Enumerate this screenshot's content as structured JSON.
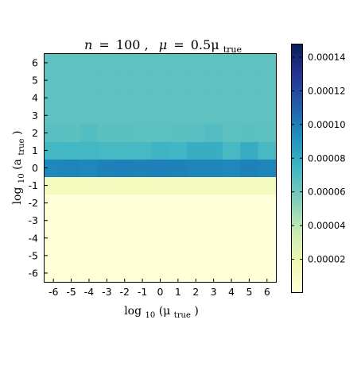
{
  "chart_data": {
    "type": "heatmap",
    "title": {
      "n_label": "n",
      "n_value": "100",
      "mu_label": "μ",
      "mu_expr": "0.5μ",
      "mu_sub": "true"
    },
    "xlabel": {
      "prefix": "log",
      "base": "10",
      "arg": "(μ",
      "sub": "true",
      "close": ")"
    },
    "ylabel": {
      "prefix": "log",
      "base": "10",
      "arg": "(a",
      "sub": "true",
      "close": ")"
    },
    "x_ticks": [
      "-6",
      "-5",
      "-4",
      "-3",
      "-2",
      "-1",
      "0",
      "1",
      "2",
      "3",
      "4",
      "5",
      "6"
    ],
    "y_ticks": [
      "-6",
      "-5",
      "-4",
      "-3",
      "-2",
      "-1",
      "0",
      "1",
      "2",
      "3",
      "4",
      "5",
      "6"
    ],
    "x_values": [
      -6,
      -5,
      -4,
      -3,
      -2,
      -1,
      0,
      1,
      2,
      3,
      4,
      5,
      6
    ],
    "y_values": [
      -6,
      -5,
      -4,
      -3,
      -2,
      -1,
      0,
      1,
      2,
      3,
      4,
      5,
      6
    ],
    "colormap": "YlGnBu",
    "vmin": 0,
    "vmax": 0.000148,
    "colorbar_ticks": [
      "0.00002",
      "0.00004",
      "0.00006",
      "0.00008",
      "0.00010",
      "0.00012",
      "0.00014"
    ],
    "colorbar_tick_values": [
      2e-05,
      4e-05,
      6e-05,
      8e-05,
      0.0001,
      0.00012,
      0.00014
    ],
    "z": [
      [
        5e-07,
        5e-07,
        5e-07,
        5e-07,
        5e-07,
        5e-07,
        5e-07,
        5e-07,
        5e-07,
        5e-07,
        5e-07,
        5e-07,
        5e-07
      ],
      [
        5e-07,
        5e-07,
        5e-07,
        5e-07,
        5e-07,
        5e-07,
        5e-07,
        5e-07,
        5e-07,
        5e-07,
        5e-07,
        5e-07,
        5e-07
      ],
      [
        5e-07,
        5e-07,
        5e-07,
        5e-07,
        5e-07,
        5e-07,
        5e-07,
        5e-07,
        5e-07,
        5e-07,
        5e-07,
        5e-07,
        5e-07
      ],
      [
        5e-07,
        5e-07,
        5e-07,
        5e-07,
        5e-07,
        5e-07,
        5e-07,
        5e-07,
        5e-07,
        5e-07,
        5e-07,
        5e-07,
        5e-07
      ],
      [
        5e-07,
        5e-07,
        5e-07,
        5e-07,
        5e-07,
        5e-07,
        5e-07,
        5e-07,
        5e-07,
        5e-07,
        5e-07,
        5e-07,
        5e-07
      ],
      [
        1.3e-05,
        1.35e-05,
        1.3e-05,
        1.3e-05,
        1.3e-05,
        1.35e-05,
        1.3e-05,
        1.3e-05,
        1.3e-05,
        1.3e-05,
        1.3e-05,
        1.3e-05,
        1.3e-05
      ],
      [
        9.6e-05,
        9.7e-05,
        9.6e-05,
        9.8e-05,
        9.9e-05,
        9.8e-05,
        9.9e-05,
        9.8e-05,
        9.7e-05,
        9.7e-05,
        9.6e-05,
        9.8e-05,
        9.7e-05
      ],
      [
        7.3e-05,
        7.3e-05,
        7.3e-05,
        7.2e-05,
        7.2e-05,
        7.2e-05,
        7.5e-05,
        7.4e-05,
        7.8e-05,
        7.8e-05,
        7.2e-05,
        7.9e-05,
        7.2e-05
      ],
      [
        6.65e-05,
        6.6e-05,
        6.85e-05,
        6.6e-05,
        6.6e-05,
        6.55e-05,
        6.55e-05,
        6.6e-05,
        6.65e-05,
        6.85e-05,
        6.55e-05,
        6.6e-05,
        6.55e-05
      ],
      [
        6.5e-05,
        6.5e-05,
        6.5e-05,
        6.5e-05,
        6.5e-05,
        6.5e-05,
        6.5e-05,
        6.5e-05,
        6.5e-05,
        6.5e-05,
        6.5e-05,
        6.5e-05,
        6.5e-05
      ],
      [
        6.5e-05,
        6.5e-05,
        6.5e-05,
        6.5e-05,
        6.5e-05,
        6.5e-05,
        6.5e-05,
        6.5e-05,
        6.5e-05,
        6.5e-05,
        6.5e-05,
        6.5e-05,
        6.5e-05
      ],
      [
        6.5e-05,
        6.5e-05,
        6.5e-05,
        6.5e-05,
        6.5e-05,
        6.5e-05,
        6.5e-05,
        6.5e-05,
        6.5e-05,
        6.5e-05,
        6.5e-05,
        6.5e-05,
        6.5e-05
      ],
      [
        6.5e-05,
        6.5e-05,
        6.5e-05,
        6.5e-05,
        6.5e-05,
        6.5e-05,
        6.5e-05,
        6.5e-05,
        6.5e-05,
        6.5e-05,
        6.5e-05,
        6.5e-05,
        6.5e-05
      ]
    ]
  }
}
